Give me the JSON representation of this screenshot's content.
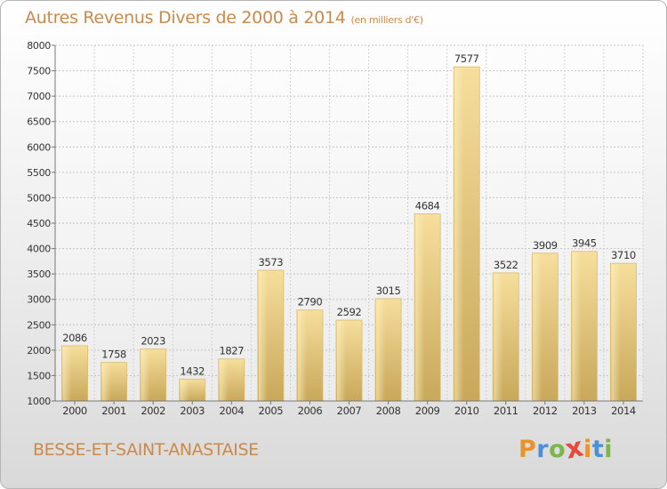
{
  "chart_data": {
    "type": "bar",
    "title": "Autres Revenus Divers de 2000 à 2014",
    "subtitle": "(en milliers d'€)",
    "xlabel": "",
    "ylabel": "",
    "categories": [
      "2000",
      "2001",
      "2002",
      "2003",
      "2004",
      "2005",
      "2006",
      "2007",
      "2008",
      "2009",
      "2010",
      "2011",
      "2012",
      "2013",
      "2014"
    ],
    "values": [
      2086,
      1758,
      2023,
      1432,
      1827,
      3573,
      2790,
      2592,
      3015,
      4684,
      7577,
      3522,
      3909,
      3945,
      3710
    ],
    "ylim": [
      1000,
      8000
    ],
    "yticks": [
      1000,
      1500,
      2000,
      2500,
      3000,
      3500,
      4000,
      4500,
      5000,
      5500,
      6000,
      6500,
      7000,
      7500,
      8000
    ],
    "grid": true,
    "bar_color": "#e7c878"
  },
  "commune": "BESSE-ET-SAINT-ANASTAISE",
  "brand": {
    "letters": [
      "P",
      "r",
      "o",
      "x",
      "i",
      "t",
      "i"
    ],
    "colors": [
      "#e8942a",
      "#4a90d9",
      "#7ab648",
      "#e64a3c",
      "#e8942a",
      "#4a90d9",
      "#7ab648"
    ]
  }
}
